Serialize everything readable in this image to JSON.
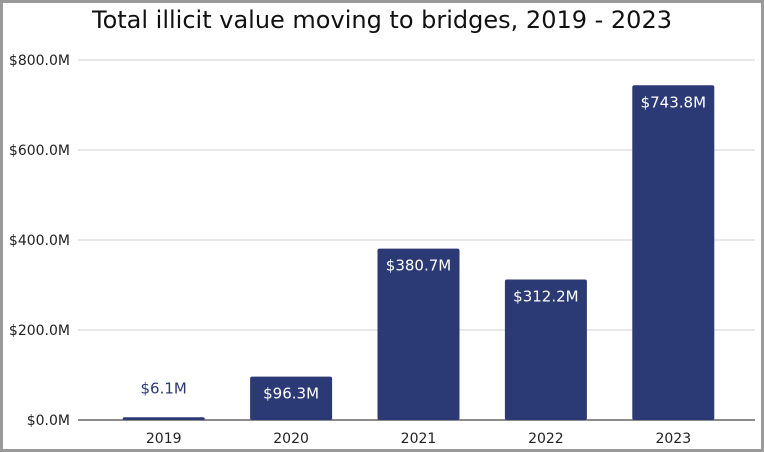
{
  "chart_data": {
    "type": "bar",
    "title": "Total illicit value moving to bridges, 2019 - 2023",
    "xlabel": "",
    "ylabel": "",
    "categories": [
      "2019",
      "2020",
      "2021",
      "2022",
      "2023"
    ],
    "values": [
      6.1,
      96.3,
      380.7,
      312.2,
      743.8
    ],
    "data_labels": [
      "$6.1M",
      "$96.3M",
      "$380.7M",
      "$312.2M",
      "$743.8M"
    ],
    "unit": "USD millions",
    "ylim": [
      0,
      800
    ],
    "yticks": [
      0,
      200,
      400,
      600,
      800
    ],
    "ytick_labels": [
      "$0.0M",
      "$200.0M",
      "$400.0M",
      "$600.0M",
      "$800.0M"
    ],
    "grid": true,
    "legend": "none",
    "bar_color": "#2b3a74",
    "label_color_inside": "#ffffff",
    "label_color_outside": "#2b3a74"
  }
}
